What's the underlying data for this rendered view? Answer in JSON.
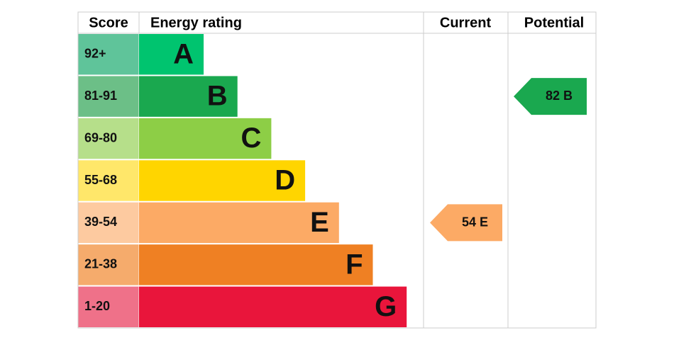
{
  "header": {
    "score": "Score",
    "rating": "Energy rating",
    "current": "Current",
    "potential": "Potential"
  },
  "bands": [
    {
      "range": "92+",
      "letter": "A",
      "color": "#00c46f",
      "score_color": "#5fc49a"
    },
    {
      "range": "81-91",
      "letter": "B",
      "color": "#1aa84f",
      "score_color": "#6cbf87"
    },
    {
      "range": "69-80",
      "letter": "C",
      "color": "#8dce46",
      "score_color": "#b6df8a"
    },
    {
      "range": "55-68",
      "letter": "D",
      "color": "#ffd500",
      "score_color": "#ffe76a"
    },
    {
      "range": "39-54",
      "letter": "E",
      "color": "#fcaa65",
      "score_color": "#fdcaa0"
    },
    {
      "range": "21-38",
      "letter": "F",
      "color": "#ef8023",
      "score_color": "#f5ab6c"
    },
    {
      "range": "1-20",
      "letter": "G",
      "color": "#e9153b",
      "score_color": "#ef7189"
    }
  ],
  "current": {
    "score": 54,
    "rating": "E"
  },
  "potential": {
    "score": 82,
    "rating": "B"
  }
}
